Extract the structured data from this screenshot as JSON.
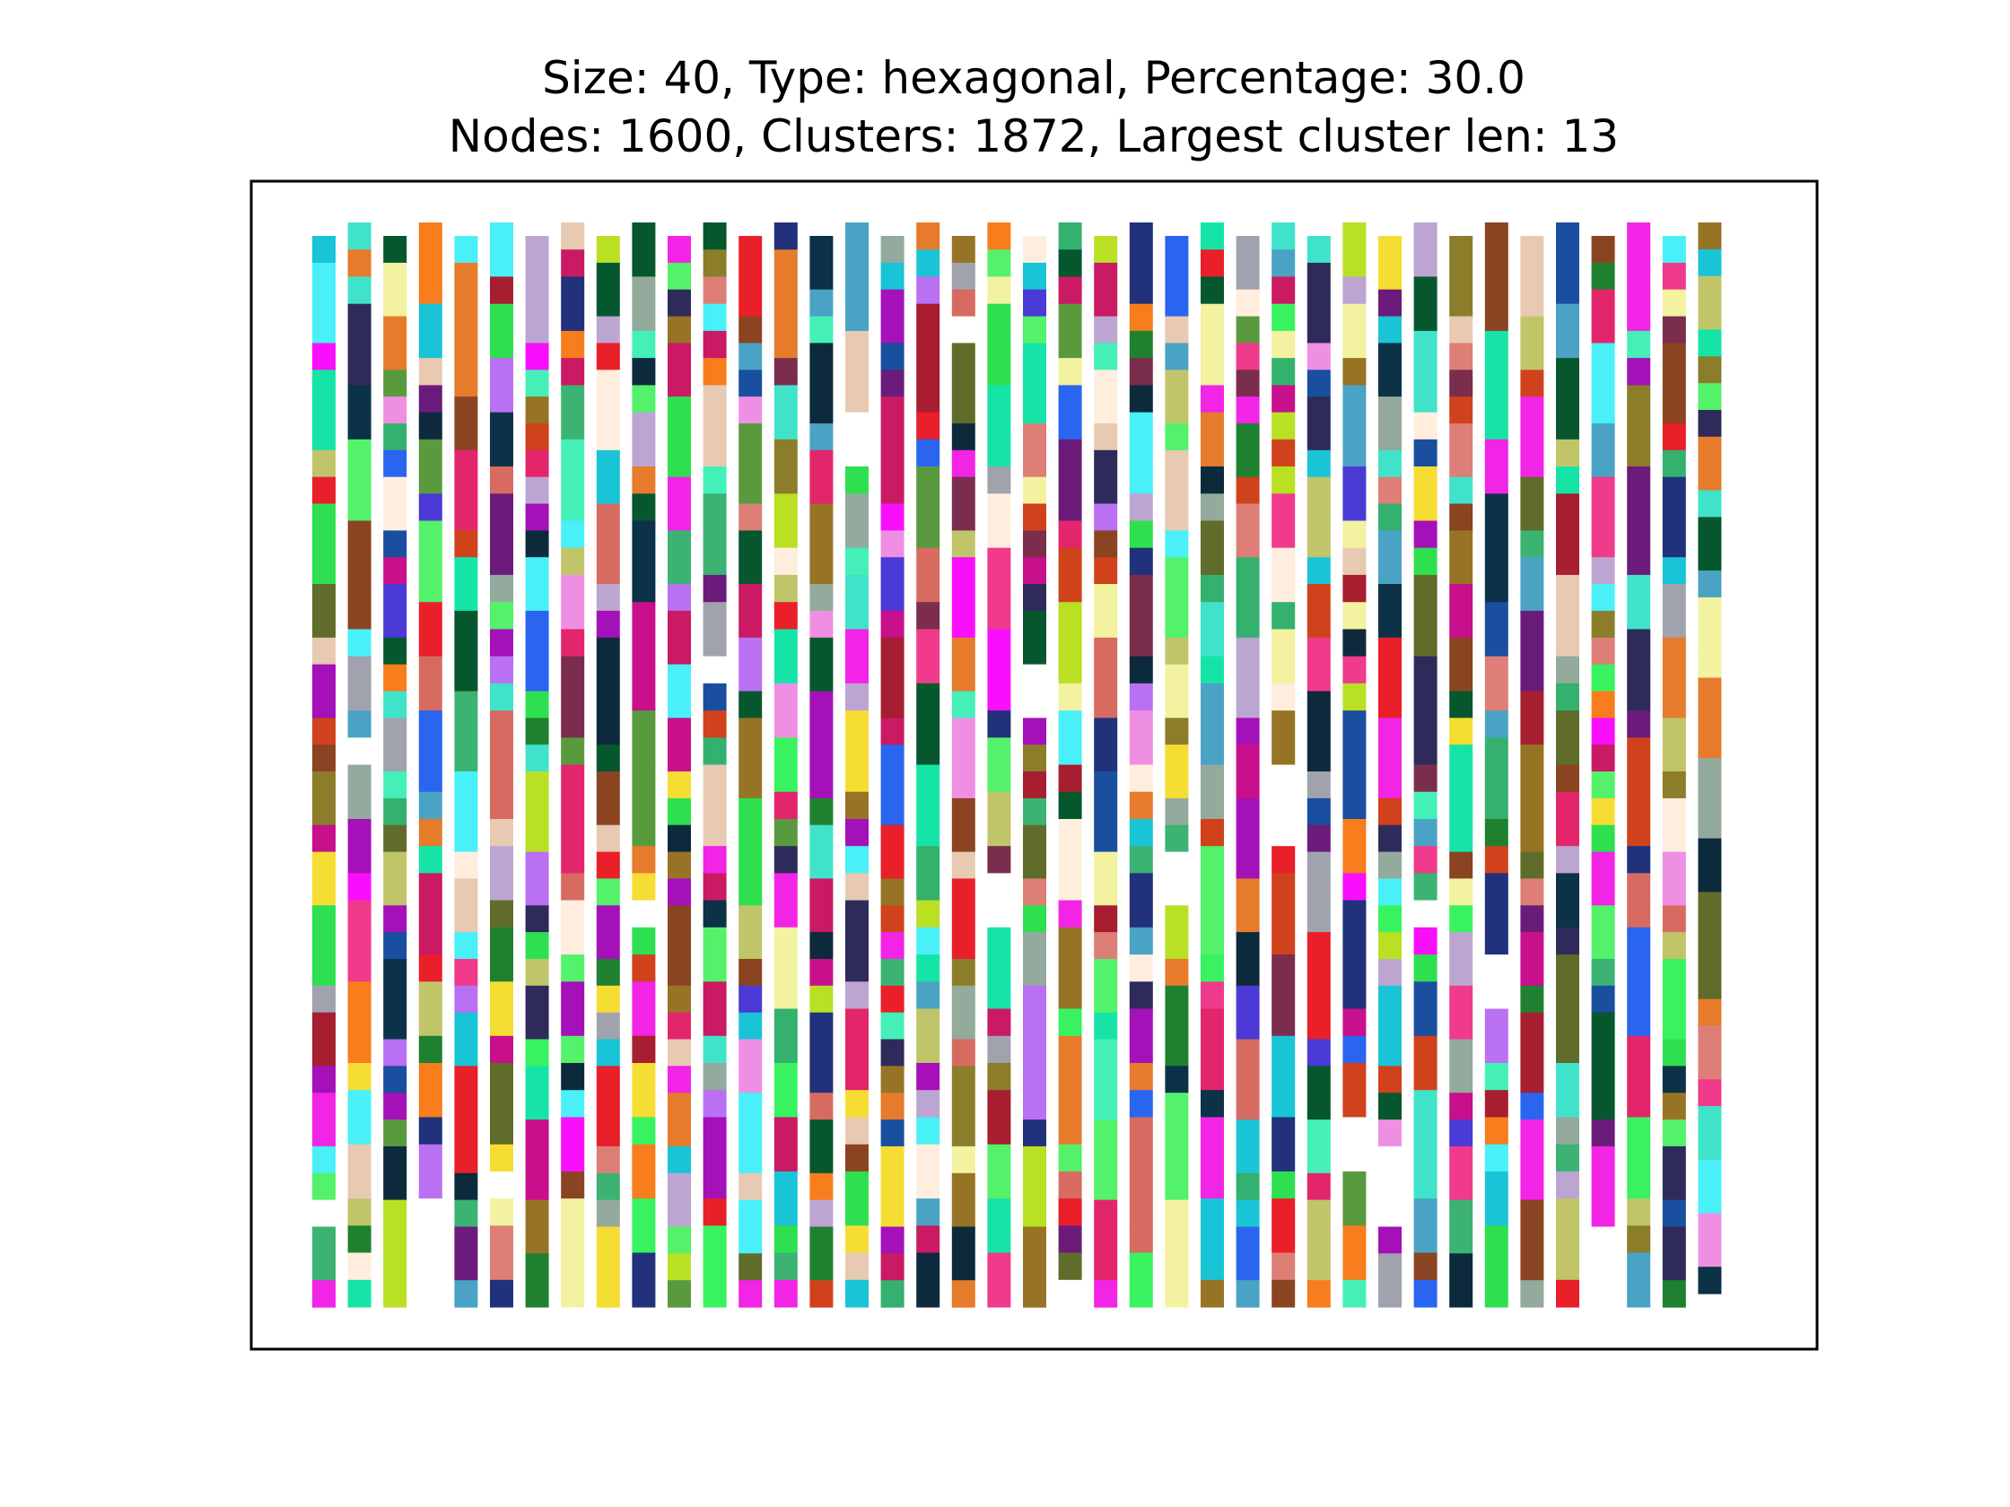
{
  "chart_data": {
    "type": "lattice-cluster-visualization",
    "title": [
      "Size: 40, Type: hexagonal, Percentage: 30.0",
      "Nodes: 1600, Clusters: 1872, Largest cluster len: 13"
    ],
    "size": 40,
    "lattice_type": "hexagonal",
    "percentage": 30.0,
    "nodes": 1600,
    "clusters": 1872,
    "largest_cluster_len": 13,
    "columns": 40,
    "rows_per_column": 40,
    "xlabel": "",
    "ylabel": "",
    "axes_ticks": false,
    "grid": false,
    "legend": "none"
  }
}
